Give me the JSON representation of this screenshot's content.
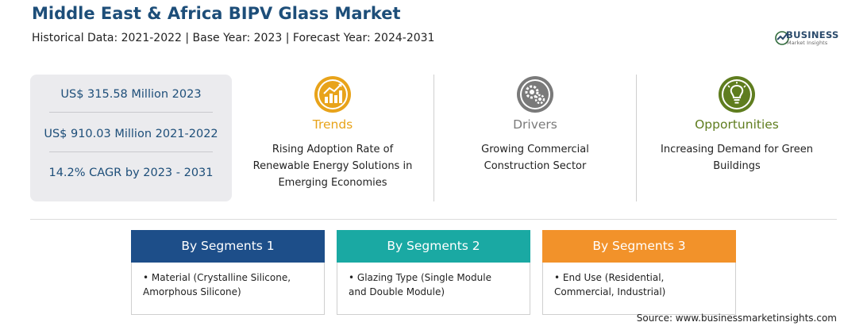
{
  "header": {
    "title": "Middle East & Africa BIPV Glass Market",
    "subtitle": "Historical Data: 2021-2022 | Base Year: 2023 | Forecast Year: 2024-2031"
  },
  "logo": {
    "name": "BUSINESS",
    "tagline": "Market Insights"
  },
  "stats": [
    "US$ 315.58 Million 2023",
    "US$ 910.03 Million 2021-2022",
    "14.2% CAGR by 2023 - 2031"
  ],
  "columns": [
    {
      "label": "Trends",
      "desc": "Rising Adoption Rate of Renewable Energy Solutions in Emerging Economies",
      "color": "#e8a31a",
      "icon": "chart-growth-icon"
    },
    {
      "label": "Drivers",
      "desc": "Growing Commercial Construction Sector",
      "color": "#7a7a7a",
      "icon": "gears-icon"
    },
    {
      "label": "Opportunities",
      "desc": "Increasing Demand for Green Buildings",
      "color": "#5f7d1f",
      "icon": "lightbulb-icon"
    }
  ],
  "segments": [
    {
      "title": "By Segments 1",
      "item": "Material (Crystalline Silicone, Amorphous Silicone)",
      "color": "#1d4e89"
    },
    {
      "title": "By Segments 2",
      "item": "Glazing Type (Single Module and Double Module)",
      "color": "#1aa9a3"
    },
    {
      "title": "By Segments 3",
      "item": "End Use (Residential, Commercial, Industrial)",
      "color": "#f2922a"
    }
  ],
  "source": "Source: www.businessmarketinsights.com"
}
